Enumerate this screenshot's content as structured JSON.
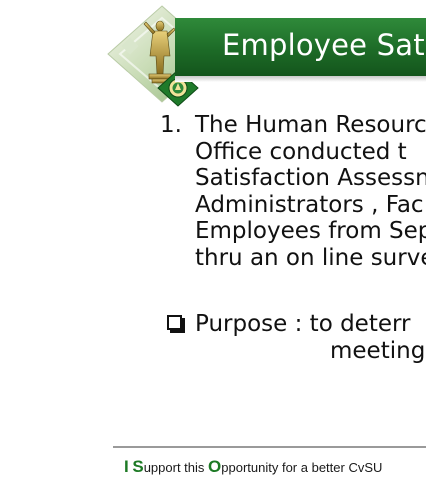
{
  "slide": {
    "title": "Employee Sati"
  },
  "item": {
    "number": "1.",
    "lines": [
      "The Human Resourc",
      "Office conducted t",
      "Satisfaction Assessn",
      "Administrators , Fac",
      "Employees from Sep",
      "thru an on line surve"
    ]
  },
  "purpose": {
    "line1": "Purpose  :  to deterr",
    "line2": "meeting"
  },
  "footer": {
    "slogan": [
      {
        "cap": "I",
        "rest": " "
      },
      {
        "cap": "S",
        "rest": "upport this "
      },
      {
        "cap": "O",
        "rest": "pportunity for a better CvSU"
      }
    ]
  },
  "colors": {
    "header_green": "#1d6b27",
    "slogan_green": "#1d7a25"
  },
  "icons": {
    "emblem": "university-statue-emblem-icon",
    "seal": "cvsu-seal-icon",
    "bullet": "checkbox-bullet-icon"
  }
}
